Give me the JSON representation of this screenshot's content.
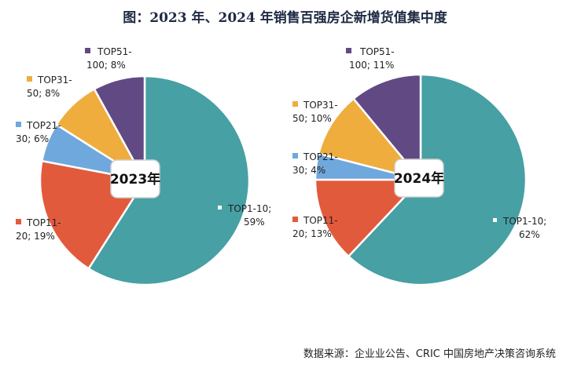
{
  "title": "图：2023 年、2024 年销售百强房企新增货值集中度",
  "source": "数据来源：企业业公告、CRIC 中国房地产决策咨询系统",
  "chart_data": [
    {
      "type": "pie",
      "center_label": "2023年",
      "slices": [
        {
          "label_line1": "TOP1-10;",
          "label_line2": "59%",
          "value": 59,
          "color": "#46A0A4"
        },
        {
          "label_line1": "TOP11-",
          "label_line2": "20; 19%",
          "value": 19,
          "color": "#E25A3C"
        },
        {
          "label_line1": "TOP21-",
          "label_line2": "30; 6%",
          "value": 6,
          "color": "#6FA8DC"
        },
        {
          "label_line1": "TOP31-",
          "label_line2": "50; 8%",
          "value": 8,
          "color": "#EEAD3D"
        },
        {
          "label_line1": "TOP51-",
          "label_line2": "100; 8%",
          "value": 8,
          "color": "#614A84"
        }
      ]
    },
    {
      "type": "pie",
      "center_label": "2024年",
      "slices": [
        {
          "label_line1": "TOP1-10;",
          "label_line2": "62%",
          "value": 62,
          "color": "#46A0A4"
        },
        {
          "label_line1": "TOP11-",
          "label_line2": "20; 13%",
          "value": 13,
          "color": "#E25A3C"
        },
        {
          "label_line1": "TOP21-",
          "label_line2": "30; 4%",
          "value": 4,
          "color": "#6FA8DC"
        },
        {
          "label_line1": "TOP31-",
          "label_line2": "50; 10%",
          "value": 10,
          "color": "#EEAD3D"
        },
        {
          "label_line1": "TOP51-",
          "label_line2": "100; 11%",
          "value": 11,
          "color": "#614A84"
        }
      ]
    }
  ]
}
